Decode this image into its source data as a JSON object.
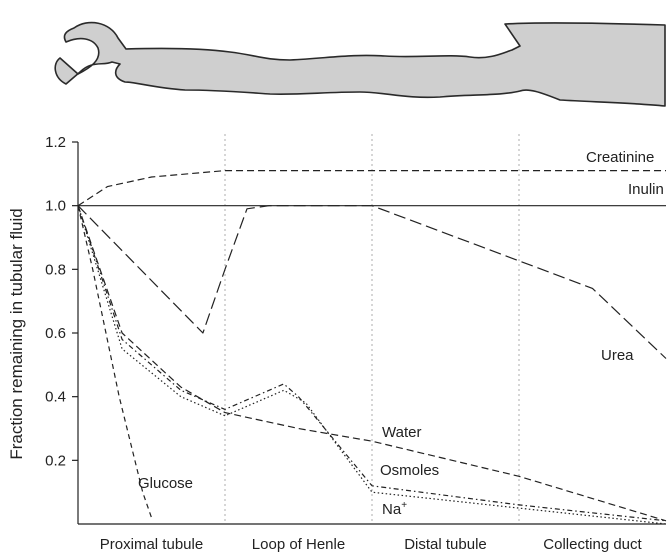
{
  "chart_data": {
    "type": "line",
    "ylabel": "Fraction remaining in tubular fluid",
    "xlabel": "",
    "ylim": [
      0,
      1.2
    ],
    "yticks": [
      0.2,
      0.4,
      0.6,
      0.8,
      1.0,
      1.2
    ],
    "yticklabels": [
      "0.2",
      "0.4",
      "0.6",
      "0.8",
      "1.0",
      "1.2"
    ],
    "xlim": [
      0,
      4
    ],
    "segments": [
      "Proximal tubule",
      "Loop of Henle",
      "Distal tubule",
      "Collecting duct"
    ],
    "grid": "dotted vertical segment dividers",
    "series": [
      {
        "name": "Creatinine",
        "style": "dashed",
        "points": [
          [
            0,
            1.0
          ],
          [
            0.2,
            1.06
          ],
          [
            0.5,
            1.09
          ],
          [
            1,
            1.11
          ],
          [
            2,
            1.11
          ],
          [
            3,
            1.11
          ],
          [
            4,
            1.11
          ]
        ]
      },
      {
        "name": "Inulin",
        "style": "solid",
        "points": [
          [
            0,
            1.0
          ],
          [
            4,
            1.0
          ]
        ]
      },
      {
        "name": "Urea",
        "style": "long-dash",
        "points": [
          [
            0,
            1.0
          ],
          [
            0.85,
            0.6
          ],
          [
            1.0,
            0.8
          ],
          [
            1.15,
            0.99
          ],
          [
            1.3,
            1.0
          ],
          [
            2.0,
            1.0
          ],
          [
            3.5,
            0.74
          ],
          [
            4,
            0.52
          ]
        ]
      },
      {
        "name": "Glucose",
        "style": "short-dash",
        "points": [
          [
            0,
            1.0
          ],
          [
            0.1,
            0.8
          ],
          [
            0.28,
            0.4
          ],
          [
            0.44,
            0.1
          ],
          [
            0.5,
            0.02
          ]
        ]
      },
      {
        "name": "Water",
        "style": "dashed",
        "points": [
          [
            0,
            1.0
          ],
          [
            0.3,
            0.6
          ],
          [
            0.7,
            0.43
          ],
          [
            1.0,
            0.35
          ],
          [
            1.5,
            0.3
          ],
          [
            2.0,
            0.26
          ],
          [
            3.0,
            0.15
          ],
          [
            4,
            0.01
          ]
        ]
      },
      {
        "name": "Osmoles",
        "style": "dash-dot",
        "points": [
          [
            0,
            1.0
          ],
          [
            0.3,
            0.58
          ],
          [
            0.7,
            0.42
          ],
          [
            1.0,
            0.36
          ],
          [
            1.4,
            0.44
          ],
          [
            1.5,
            0.4
          ],
          [
            2.0,
            0.12
          ],
          [
            3.0,
            0.06
          ],
          [
            4,
            0.01
          ]
        ]
      },
      {
        "name": "Na+",
        "style": "dotted",
        "points": [
          [
            0,
            1.0
          ],
          [
            0.3,
            0.55
          ],
          [
            0.7,
            0.4
          ],
          [
            1.0,
            0.34
          ],
          [
            1.4,
            0.42
          ],
          [
            1.55,
            0.38
          ],
          [
            2.0,
            0.1
          ],
          [
            3.0,
            0.05
          ],
          [
            4,
            0.0
          ]
        ]
      }
    ]
  },
  "labels": {
    "creatinine": "Creatinine",
    "inulin": "Inulin",
    "urea": "Urea",
    "water": "Water",
    "osmoles": "Osmoles",
    "glucose": "Glucose",
    "na_base": "Na",
    "na_sup": "+"
  },
  "colors": {
    "ink": "#222222",
    "nephron_fill": "#cfcfcf",
    "nephron_stroke": "#2a2a2a",
    "divider": "#999999"
  },
  "nephron_illustration": "nephron-tubule-drawing"
}
